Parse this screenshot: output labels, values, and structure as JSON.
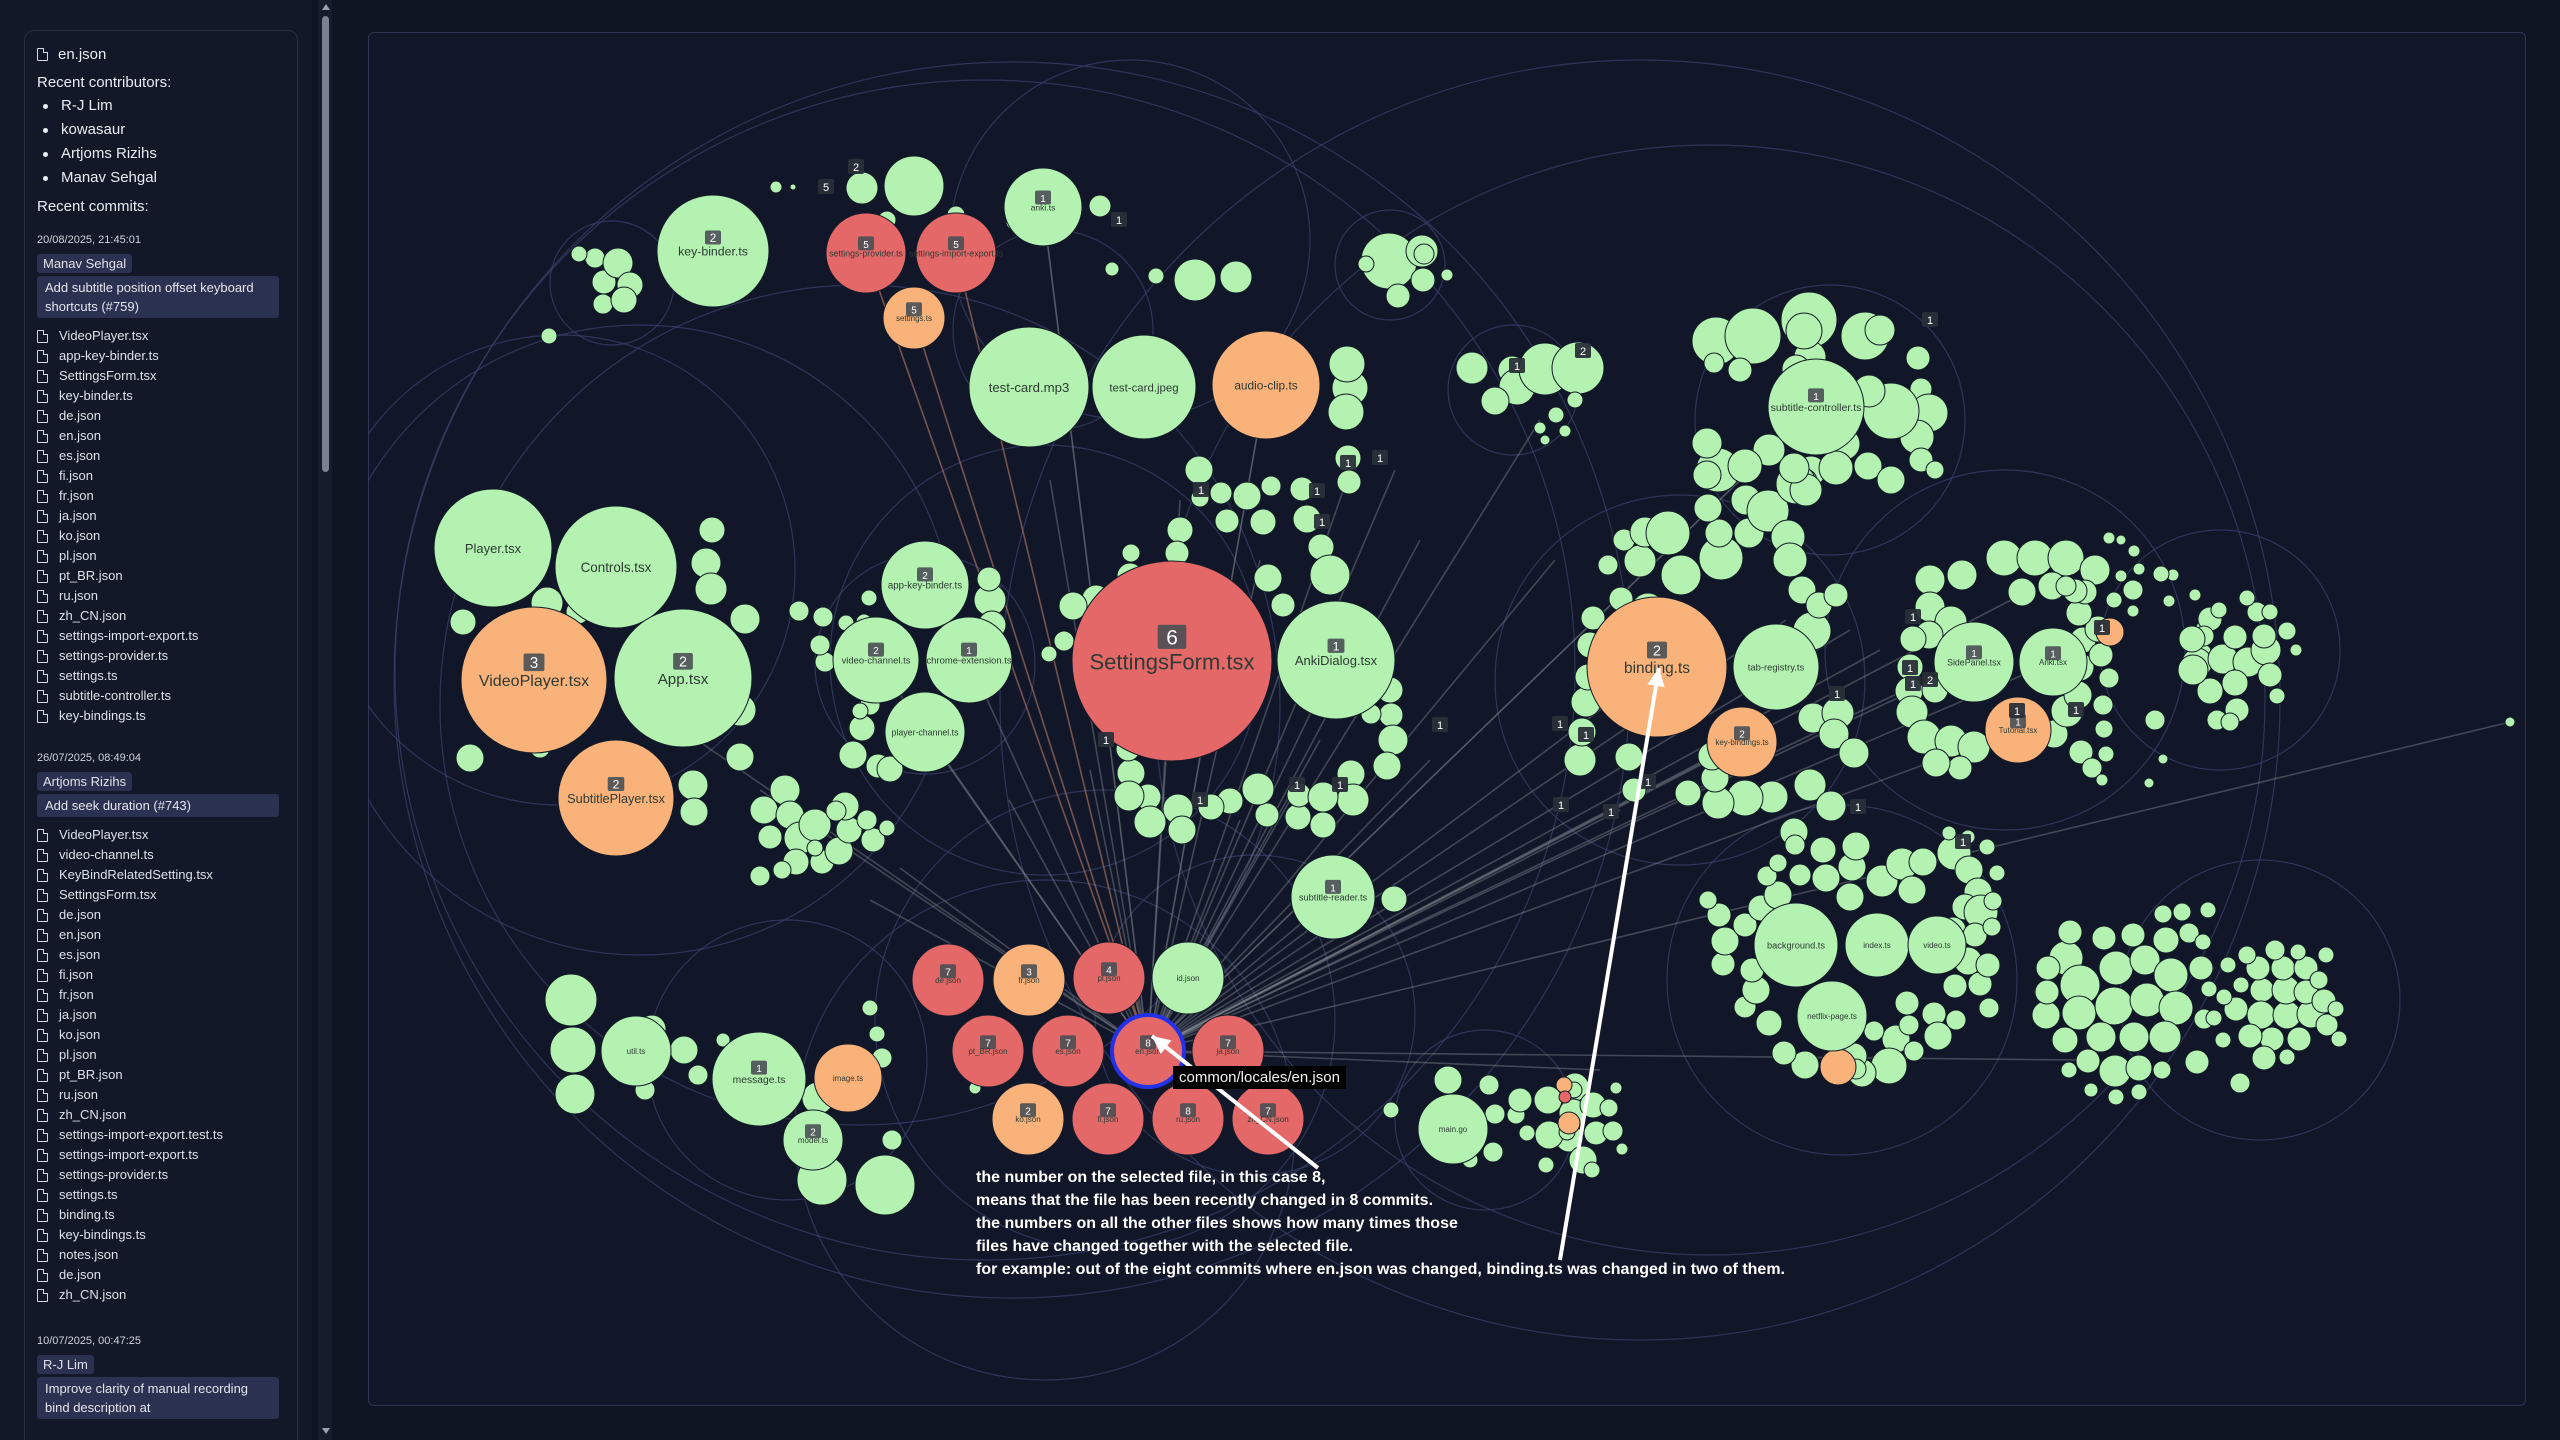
{
  "sidebar": {
    "selected_file": "en.json",
    "contributors_heading": "Recent contributors:",
    "contributors": [
      "R-J Lim",
      "kowasaur",
      "Artjoms Rizihs",
      "Manav Sehgal"
    ],
    "commits_heading": "Recent commits:",
    "commits": [
      {
        "date": "20/08/2025, 21:45:01",
        "author": "Manav Sehgal",
        "message": "Add subtitle position offset keyboard shortcuts (#759)",
        "files": [
          "VideoPlayer.tsx",
          "app-key-binder.ts",
          "SettingsForm.tsx",
          "key-binder.ts",
          "de.json",
          "en.json",
          "es.json",
          "fi.json",
          "fr.json",
          "ja.json",
          "ko.json",
          "pl.json",
          "pt_BR.json",
          "ru.json",
          "zh_CN.json",
          "settings-import-export.ts",
          "settings-provider.ts",
          "settings.ts",
          "subtitle-controller.ts",
          "key-bindings.ts"
        ]
      },
      {
        "date": "26/07/2025, 08:49:04",
        "author": "Artjoms Rizihs",
        "message": "Add seek duration (#743)",
        "files": [
          "VideoPlayer.tsx",
          "video-channel.ts",
          "KeyBindRelatedSetting.tsx",
          "SettingsForm.tsx",
          "de.json",
          "en.json",
          "es.json",
          "fi.json",
          "fr.json",
          "ja.json",
          "ko.json",
          "pl.json",
          "pt_BR.json",
          "ru.json",
          "zh_CN.json",
          "settings-import-export.test.ts",
          "settings-import-export.ts",
          "settings-provider.ts",
          "settings.ts",
          "binding.ts",
          "key-bindings.ts",
          "notes.json",
          "de.json",
          "zh_CN.json"
        ]
      },
      {
        "date": "10/07/2025, 00:47:25",
        "author": "R-J Lim",
        "message": "Improve clarity of manual recording bind description at",
        "files": []
      }
    ]
  },
  "viz": {
    "colors": {
      "background": "#111729",
      "hot": "#e56868",
      "warm": "#f9b37a",
      "cool": "#b3f2b0",
      "ring": "#39406a",
      "badge": "#4a4f55",
      "selected_ring": "#2332e8",
      "line": "#8c8f97"
    },
    "tooltip": "common/locales/en.json",
    "annotation_lines": [
      "the number on the selected file, in this case 8,",
      "means that the file has been recently changed in 8 commits.",
      "the numbers on all the other files shows how many times those",
      "files have changed together with the selected file.",
      "for example: out of the eight commits where en.json was changed, binding.ts was changed in two of them."
    ],
    "files": [
      {
        "label": "Player.tsx",
        "heat": "cool"
      },
      {
        "label": "Controls.tsx",
        "heat": "cool"
      },
      {
        "label": "VideoPlayer.tsx",
        "heat": "warm",
        "count": "3"
      },
      {
        "label": "App.tsx",
        "heat": "cool",
        "count": "2"
      },
      {
        "label": "SubtitlePlayer.tsx",
        "heat": "warm",
        "count": "2"
      },
      {
        "label": "key-binder.ts",
        "heat": "cool",
        "count": "2"
      },
      {
        "label": "settings-provider.ts",
        "heat": "hot",
        "count": "5"
      },
      {
        "label": "settings-import-export.ts",
        "heat": "hot",
        "count": "5"
      },
      {
        "label": "settings.ts",
        "heat": "warm",
        "count": "5"
      },
      {
        "label": "anki.ts",
        "heat": "cool",
        "count": "1"
      },
      {
        "label": "test-card.mp3",
        "heat": "cool"
      },
      {
        "label": "test-card.jpeg",
        "heat": "cool"
      },
      {
        "label": "audio-clip.ts",
        "heat": "warm"
      },
      {
        "label": "SettingsForm.tsx",
        "heat": "hot",
        "count": "6"
      },
      {
        "label": "AnkiDialog.tsx",
        "heat": "cool",
        "count": "1"
      },
      {
        "label": "video-channel.ts",
        "heat": "cool",
        "count": "2"
      },
      {
        "label": "chrome-extension.ts",
        "heat": "cool",
        "count": "1"
      },
      {
        "label": "player-channel.ts",
        "heat": "cool"
      },
      {
        "label": "app-key-binder.ts",
        "heat": "cool",
        "count": "2"
      },
      {
        "label": "subtitle-reader.ts",
        "heat": "cool",
        "count": "1"
      },
      {
        "label": "binding.ts",
        "heat": "warm",
        "count": "2"
      },
      {
        "label": "tab-registry.ts",
        "heat": "cool"
      },
      {
        "label": "key-bindings.ts",
        "heat": "warm",
        "count": "2"
      },
      {
        "label": "subtitle-controller.ts",
        "heat": "cool",
        "count": "1"
      },
      {
        "label": "SidePanel.tsx",
        "heat": "cool",
        "count": "1"
      },
      {
        "label": "Anki.tsx",
        "heat": "cool",
        "count": "1"
      },
      {
        "label": "Tutorial.tsx",
        "heat": "warm",
        "count": "1"
      },
      {
        "label": "background.ts",
        "heat": "cool"
      },
      {
        "label": "index.ts",
        "heat": "cool"
      },
      {
        "label": "video.ts",
        "heat": "cool"
      },
      {
        "label": "netflix-page.ts",
        "heat": "cool"
      },
      {
        "label": "message.ts",
        "heat": "cool",
        "count": "1"
      },
      {
        "label": "image.ts",
        "heat": "warm"
      },
      {
        "label": "util.ts",
        "heat": "cool"
      },
      {
        "label": "model.ts",
        "heat": "cool",
        "count": "2"
      },
      {
        "label": "main.go",
        "heat": "cool"
      },
      {
        "label": "de.json",
        "heat": "hot",
        "count": "7"
      },
      {
        "label": "fr.json",
        "heat": "warm",
        "count": "3"
      },
      {
        "label": "pl.json",
        "heat": "hot",
        "count": "4"
      },
      {
        "label": "id.json",
        "heat": "cool"
      },
      {
        "label": "pt_BR.json",
        "heat": "hot",
        "count": "7"
      },
      {
        "label": "es.json",
        "heat": "hot",
        "count": "7"
      },
      {
        "label": "en.json",
        "heat": "hot",
        "count": "8",
        "selected": true
      },
      {
        "label": "ja.json",
        "heat": "hot",
        "count": "7"
      },
      {
        "label": "ko.json",
        "heat": "warm",
        "count": "2"
      },
      {
        "label": "fi.json",
        "heat": "hot",
        "count": "7"
      },
      {
        "label": "ru.json",
        "heat": "hot",
        "count": "8"
      },
      {
        "label": "zh_CN.json",
        "heat": "hot",
        "count": "7"
      }
    ]
  }
}
